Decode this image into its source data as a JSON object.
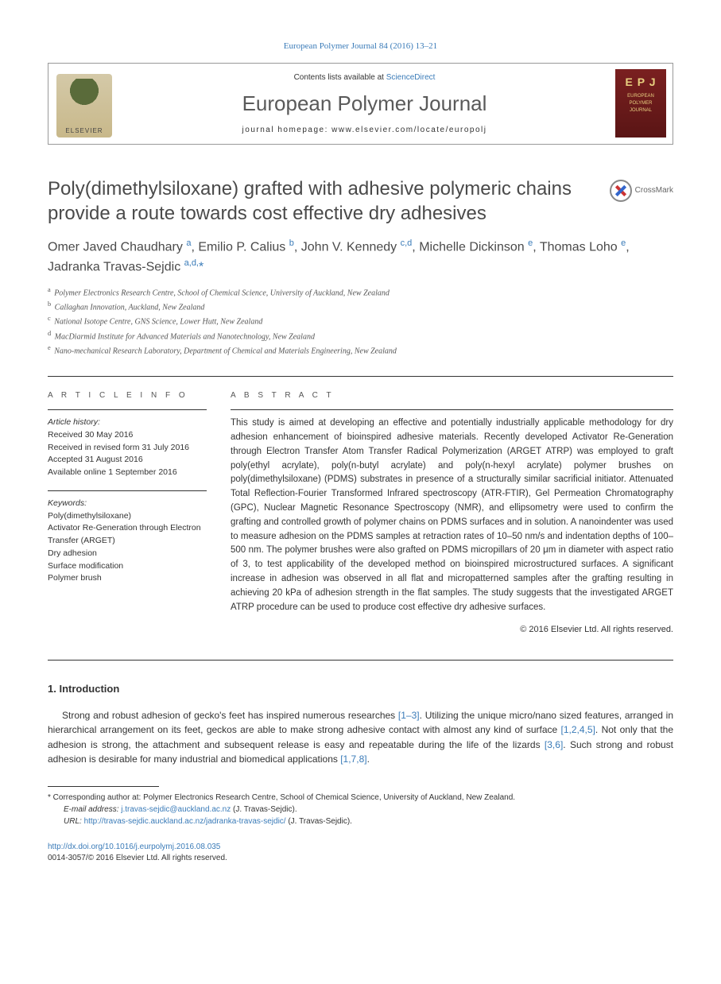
{
  "header": {
    "citation": "European Polymer Journal 84 (2016) 13–21",
    "contents_prefix": "Contents lists available at ",
    "contents_link": "ScienceDirect",
    "journal_name": "European Polymer Journal",
    "homepage_label": "journal homepage: www.elsevier.com/locate/europolj",
    "publisher_label": "ELSEVIER",
    "cover_epj": "E P J",
    "cover_text": "EUROPEAN POLYMER JOURNAL"
  },
  "crossmark_label": "CrossMark",
  "title": "Poly(dimethylsiloxane) grafted with adhesive polymeric chains provide a route towards cost effective dry adhesives",
  "authors_html": "Omer Javed Chaudhary <sup>a</sup>, Emilio P. Calius <sup>b</sup>, John V. Kennedy <sup>c,d</sup>, Michelle Dickinson <sup>e</sup>, Thomas Loho <sup>e</sup>, Jadranka Travas-Sejdic <sup>a,d,</sup><span class='star'>*</span>",
  "affiliations": [
    {
      "sup": "a",
      "text": "Polymer Electronics Research Centre, School of Chemical Science, University of Auckland, New Zealand"
    },
    {
      "sup": "b",
      "text": "Callaghan Innovation, Auckland, New Zealand"
    },
    {
      "sup": "c",
      "text": "National Isotope Centre, GNS Science, Lower Hutt, New Zealand"
    },
    {
      "sup": "d",
      "text": "MacDiarmid Institute for Advanced Materials and Nanotechnology, New Zealand"
    },
    {
      "sup": "e",
      "text": "Nano-mechanical Research Laboratory, Department of Chemical and Materials Engineering, New Zealand"
    }
  ],
  "article_info": {
    "heading": "A R T I C L E   I N F O",
    "history_label": "Article history:",
    "history": [
      "Received 30 May 2016",
      "Received in revised form 31 July 2016",
      "Accepted 31 August 2016",
      "Available online 1 September 2016"
    ],
    "keywords_label": "Keywords:",
    "keywords": [
      "Poly(dimethylsiloxane)",
      "Activator Re-Generation through Electron Transfer (ARGET)",
      "Dry adhesion",
      "Surface modification",
      "Polymer brush"
    ]
  },
  "abstract": {
    "heading": "A B S T R A C T",
    "text": "This study is aimed at developing an effective and potentially industrially applicable methodology for dry adhesion enhancement of bioinspired adhesive materials. Recently developed Activator Re-Generation through Electron Transfer Atom Transfer Radical Polymerization (ARGET ATRP) was employed to graft poly(ethyl acrylate), poly(n-butyl acrylate) and poly(n-hexyl acrylate) polymer brushes on poly(dimethylsiloxane) (PDMS) substrates in presence of a structurally similar sacrificial initiator. Attenuated Total Reflection-Fourier Transformed Infrared spectroscopy (ATR-FTIR), Gel Permeation Chromatography (GPC), Nuclear Magnetic Resonance Spectroscopy (NMR), and ellipsometry were used to confirm the grafting and controlled growth of polymer chains on PDMS surfaces and in solution. A nanoindenter was used to measure adhesion on the PDMS samples at retraction rates of 10–50 nm/s and indentation depths of 100–500 nm. The polymer brushes were also grafted on PDMS micropillars of 20 μm in diameter with aspect ratio of 3, to test applicability of the developed method on bioinspired microstructured surfaces. A significant increase in adhesion was observed in all flat and micropatterned samples after the grafting resulting in achieving 20 kPa of adhesion strength in the flat samples. The study suggests that the investigated ARGET ATRP procedure can be used to produce cost effective dry adhesive surfaces.",
    "copyright": "© 2016 Elsevier Ltd. All rights reserved."
  },
  "intro": {
    "heading": "1. Introduction",
    "para1_pre": "Strong and robust adhesion of gecko's feet has inspired numerous researches ",
    "ref1": "[1–3]",
    "para1_mid1": ". Utilizing the unique micro/nano sized features, arranged in hierarchical arrangement on its feet, geckos are able to make strong adhesive contact with almost any kind of surface ",
    "ref2": "[1,2,4,5]",
    "para1_mid2": ". Not only that the adhesion is strong, the attachment and subsequent release is easy and repeatable during the life of the lizards ",
    "ref3": "[3,6]",
    "para1_mid3": ". Such strong and robust adhesion is desirable for many industrial and biomedical applications ",
    "ref4": "[1,7,8]",
    "para1_end": "."
  },
  "footnotes": {
    "corr": "* Corresponding author at: Polymer Electronics Research Centre, School of Chemical Science, University of Auckland, New Zealand.",
    "email_label": "E-mail address: ",
    "email": "j.travas-sejdic@auckland.ac.nz",
    "email_suffix": " (J. Travas-Sejdic).",
    "url_label": "URL: ",
    "url": "http://travas-sejdic.auckland.ac.nz/jadranka-travas-sejdic/",
    "url_suffix": " (J. Travas-Sejdic)."
  },
  "footer": {
    "doi": "http://dx.doi.org/10.1016/j.eurpolymj.2016.08.035",
    "issn_line": "0014-3057/© 2016 Elsevier Ltd. All rights reserved."
  },
  "colors": {
    "link": "#3a7bb8",
    "text": "#333333",
    "heading": "#4a4a4a"
  }
}
